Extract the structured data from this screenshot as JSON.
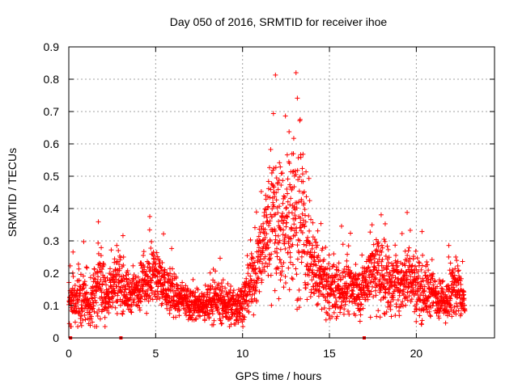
{
  "chart_data": {
    "type": "scatter",
    "title": "Day 050 of 2016, SRMTID for receiver ihoe",
    "xlabel": "GPS time / hours",
    "ylabel": "SRMTID / TECUs",
    "xlim": [
      0,
      24.5
    ],
    "ylim": [
      0,
      0.9
    ],
    "xticks": [
      0,
      5,
      10,
      15,
      20
    ],
    "yticks": [
      0,
      0.1,
      0.2,
      0.3,
      0.4,
      0.5,
      0.6,
      0.7,
      0.8,
      0.9
    ],
    "grid": true,
    "marker": "plus",
    "color": "#ff0000",
    "data_envelope": [
      {
        "x": 0.0,
        "typical": 0.1,
        "spread": 0.06
      },
      {
        "x": 0.7,
        "typical": 0.13,
        "spread": 0.1
      },
      {
        "x": 1.2,
        "typical": 0.09,
        "spread": 0.05
      },
      {
        "x": 1.7,
        "typical": 0.16,
        "spread": 0.14
      },
      {
        "x": 2.2,
        "typical": 0.13,
        "spread": 0.07
      },
      {
        "x": 2.8,
        "typical": 0.19,
        "spread": 0.1
      },
      {
        "x": 3.5,
        "typical": 0.13,
        "spread": 0.06
      },
      {
        "x": 4.3,
        "typical": 0.17,
        "spread": 0.08
      },
      {
        "x": 4.9,
        "typical": 0.2,
        "spread": 0.1
      },
      {
        "x": 5.6,
        "typical": 0.15,
        "spread": 0.08
      },
      {
        "x": 6.3,
        "typical": 0.12,
        "spread": 0.05
      },
      {
        "x": 7.0,
        "typical": 0.1,
        "spread": 0.05
      },
      {
        "x": 7.8,
        "typical": 0.1,
        "spread": 0.05
      },
      {
        "x": 8.5,
        "typical": 0.12,
        "spread": 0.06
      },
      {
        "x": 9.3,
        "typical": 0.09,
        "spread": 0.06
      },
      {
        "x": 10.0,
        "typical": 0.11,
        "spread": 0.06
      },
      {
        "x": 10.6,
        "typical": 0.17,
        "spread": 0.09
      },
      {
        "x": 11.2,
        "typical": 0.3,
        "spread": 0.14
      },
      {
        "x": 11.8,
        "typical": 0.38,
        "spread": 0.22
      },
      {
        "x": 12.4,
        "typical": 0.33,
        "spread": 0.2
      },
      {
        "x": 12.9,
        "typical": 0.42,
        "spread": 0.28
      },
      {
        "x": 13.5,
        "typical": 0.32,
        "spread": 0.22
      },
      {
        "x": 14.0,
        "typical": 0.22,
        "spread": 0.1
      },
      {
        "x": 14.6,
        "typical": 0.17,
        "spread": 0.1
      },
      {
        "x": 15.3,
        "typical": 0.14,
        "spread": 0.08
      },
      {
        "x": 16.0,
        "typical": 0.16,
        "spread": 0.08
      },
      {
        "x": 16.8,
        "typical": 0.14,
        "spread": 0.07
      },
      {
        "x": 17.5,
        "typical": 0.22,
        "spread": 0.12
      },
      {
        "x": 18.2,
        "typical": 0.18,
        "spread": 0.12
      },
      {
        "x": 18.9,
        "typical": 0.16,
        "spread": 0.08
      },
      {
        "x": 19.5,
        "typical": 0.2,
        "spread": 0.1
      },
      {
        "x": 20.2,
        "typical": 0.15,
        "spread": 0.1
      },
      {
        "x": 20.9,
        "typical": 0.14,
        "spread": 0.08
      },
      {
        "x": 21.6,
        "typical": 0.11,
        "spread": 0.05
      },
      {
        "x": 22.3,
        "typical": 0.16,
        "spread": 0.12
      },
      {
        "x": 22.8,
        "typical": 0.1,
        "spread": 0.04
      }
    ],
    "zero_points": [
      0.1,
      3.0,
      17.0
    ],
    "points_per_hour": 120
  }
}
